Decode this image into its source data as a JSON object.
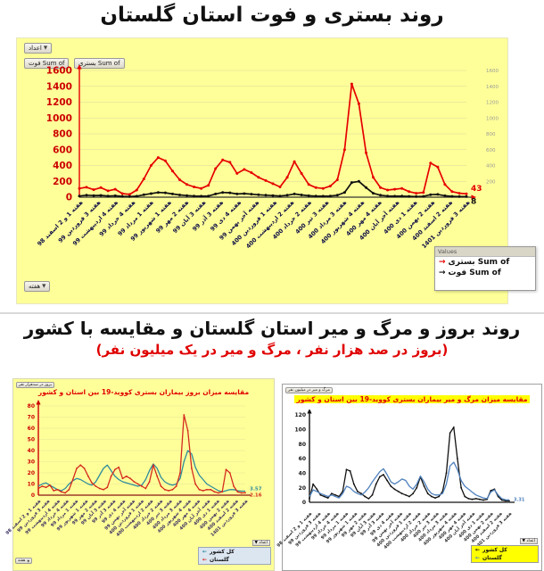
{
  "page": {
    "title_main": "روند بستری و فوت استان گلستان",
    "title_section2": "روند بروز و مرگ و میر استان گلستان و مقایسه با کشور",
    "subtitle_section2": "(بروز در صد هزار نفر ، مرگ و میر در یک میلیون نفر)"
  },
  "main_chart": {
    "numbers_filter_button": "اعداد",
    "field_buttons": [
      "Sum of فوت",
      "Sum of بستری"
    ],
    "week_field_button": "هفته",
    "legend_header": "Values",
    "legend_items": [
      {
        "label": "Sum of بستری",
        "color": "#e60000"
      },
      {
        "label": "Sum of فوت",
        "color": "#111111"
      }
    ]
  },
  "left_chart": {
    "field_button": "بروز در صدهزار نفر",
    "numbers_filter_button": "اعداد",
    "week_field_button": "هفته",
    "legend_items": [
      {
        "label": "کل کشور",
        "color": "#2e8b9c"
      },
      {
        "label": "گلستان",
        "color": "#d42a1e"
      }
    ]
  },
  "right_chart": {
    "field_button": "مرگ و میر در میلیون نفر",
    "numbers_filter_button": "اعداد",
    "legend_items": [
      {
        "label": "کل کشور",
        "color": "#111111"
      },
      {
        "label": "گلستان",
        "color": "#4f81bd"
      }
    ]
  },
  "chart_data": [
    {
      "type": "line",
      "title": "روند بستری و فوت استان گلستان",
      "xlabel": "هفته",
      "ylabel": "",
      "ylim": [
        0,
        1600
      ],
      "yticks": [
        0,
        200,
        400,
        600,
        800,
        1000,
        1200,
        1400,
        1600
      ],
      "grid": true,
      "legend_position": "bottom-right",
      "categories": [
        "هفته 1 و 2 اسفند 98",
        "هفته 3 فروردین 99",
        "هفته 4 اردیبهشت 99",
        "هفته 4 خرداد 99",
        "هفته 1 مرداد 99",
        "هفته 1 شهریور 99",
        "هفته 2 مهر 99",
        "هفته 3 آبان 99",
        "هفته 3 آذر 99",
        "هفته 4 دی 99",
        "هفته آخر بهمن 99",
        "هفته 1 فروردین 400",
        "هفته 2 اردیبهشت 400",
        "هفته 2 خرداد 400",
        "هفته 3 تیر 400",
        "هفته 3 مرداد 400",
        "هفته 4 شهریور 400",
        "هفته 4 مهر 400",
        "هفته آخر آبان 400",
        "هفته 1 دی 400",
        "هفته 2 بهمن 400",
        "هفته 2 اسفند 400",
        "هفته 3 فروردین 1401"
      ],
      "series": [
        {
          "name": "Sum of بستری",
          "color": "#e60000",
          "values": [
            110,
            125,
            95,
            120,
            80,
            100,
            45,
            35,
            90,
            230,
            400,
            500,
            460,
            330,
            220,
            160,
            130,
            110,
            150,
            360,
            470,
            440,
            300,
            350,
            310,
            250,
            210,
            170,
            130,
            250,
            450,
            300,
            160,
            120,
            110,
            140,
            220,
            600,
            1430,
            1180,
            560,
            250,
            120,
            90,
            100,
            110,
            70,
            50,
            60,
            430,
            380,
            160,
            70,
            50,
            43
          ]
        },
        {
          "name": "Sum of فوت",
          "color": "#111111",
          "values": [
            15,
            25,
            20,
            22,
            15,
            18,
            10,
            8,
            12,
            30,
            45,
            60,
            55,
            40,
            28,
            20,
            15,
            12,
            15,
            40,
            60,
            55,
            40,
            45,
            38,
            30,
            25,
            20,
            15,
            25,
            40,
            28,
            18,
            14,
            12,
            15,
            25,
            60,
            185,
            200,
            120,
            50,
            25,
            15,
            12,
            14,
            10,
            8,
            10,
            32,
            35,
            18,
            10,
            8,
            8
          ]
        }
      ],
      "end_labels": [
        {
          "text": "43",
          "color": "#e60000"
        },
        {
          "text": "8",
          "color": "#111111"
        }
      ]
    },
    {
      "type": "line",
      "title": "مقایسه میزان بروز بیماران بستری کووید-19 بین استان و کشور",
      "xlabel": "هفته",
      "ylabel": "بروز در صد هزار نفر",
      "ylim": [
        0,
        80
      ],
      "yticks": [
        0,
        10,
        20,
        30,
        40,
        50,
        60,
        70,
        80
      ],
      "grid": true,
      "legend_position": "bottom-right",
      "categories": [
        "هفته 1 و 2 اسفند 98",
        "هفته 3 فروردین 99",
        "هفته 4 اردیبهشت 99",
        "هفته 4 خرداد 99",
        "هفته 1 مرداد 99",
        "هفته 1 شهریور 99",
        "هفته 2 مهر 99",
        "هفته 3 آبان 99",
        "هفته 3 آذر 99",
        "هفته 4 دی 99",
        "هفته آخر بهمن 99",
        "هفته 1 فروردین 400",
        "هفته 2 اردیبهشت 400",
        "هفته 2 خرداد 400",
        "هفته 3 تیر 400",
        "هفته 3 مرداد 400",
        "هفته 4 شهریور 400",
        "هفته 4 مهر 400",
        "هفته آخر آبان 400",
        "هفته 1 دی 400",
        "هفته 2 بهمن 400",
        "هفته 2 اسفند 400",
        "هفته 3 فروردین 1401"
      ],
      "series": [
        {
          "name": "کل کشور",
          "color": "#2e8b9c",
          "values": [
            8,
            10,
            11,
            9,
            7,
            5,
            4,
            6,
            10,
            13,
            15,
            14,
            12,
            10,
            9,
            12,
            18,
            24,
            27,
            22,
            17,
            14,
            12,
            11,
            10,
            9,
            8,
            9,
            14,
            22,
            28,
            24,
            16,
            12,
            10,
            9,
            10,
            15,
            30,
            40,
            37,
            25,
            18,
            14,
            10,
            8,
            6,
            4,
            3,
            4,
            5,
            5,
            4,
            3.6,
            3.57
          ]
        },
        {
          "name": "گلستان",
          "color": "#d42a1e",
          "values": [
            6,
            8,
            7,
            9,
            4,
            5,
            3,
            2,
            5,
            14,
            24,
            27,
            24,
            17,
            11,
            8,
            6,
            5,
            7,
            17,
            23,
            25,
            15,
            17,
            15,
            12,
            10,
            8,
            6,
            12,
            27,
            17,
            8,
            5,
            4,
            5,
            8,
            20,
            72,
            58,
            24,
            10,
            5,
            4,
            5,
            5,
            3,
            2,
            3,
            23,
            20,
            8,
            3,
            2,
            2.16
          ]
        }
      ],
      "end_labels": [
        {
          "text": "3.57",
          "color": "#2e8b9c"
        },
        {
          "text": "2.16",
          "color": "#d42a1e"
        }
      ]
    },
    {
      "type": "line",
      "title": "مقایسه میزان مرگ و میر بیماران بستری کووید-19 بین استان و کشور",
      "xlabel": "هفته",
      "ylabel": "مرگ و میر در یک میلیون نفر",
      "ylim": [
        0,
        120
      ],
      "yticks": [
        0,
        20,
        40,
        60,
        80,
        100,
        120
      ],
      "grid": false,
      "legend_position": "bottom-right",
      "categories": [
        "هفته 1 و 2 اسفند 98",
        "هفته 3 فروردین 99",
        "هفته 4 اردیبهشت 99",
        "هفته 4 خرداد 99",
        "هفته 1 مرداد 99",
        "هفته 1 شهریور 99",
        "هفته 2 مهر 99",
        "هفته 3 آبان 99",
        "هفته 3 آذر 99",
        "هفته 4 دی 99",
        "هفته آخر بهمن 99",
        "هفته 1 فروردین 400",
        "هفته 2 اردیبهشت 400",
        "هفته 2 خرداد 400",
        "هفته 3 تیر 400",
        "هفته 3 مرداد 400",
        "هفته 4 شهریور 400",
        "هفته 4 مهر 400",
        "هفته آخر آبان 400",
        "هفته 1 دی 400",
        "هفته 2 بهمن 400",
        "هفته 2 اسفند 400",
        "هفته 3 فروردین 1401"
      ],
      "series": [
        {
          "name": "کل کشور",
          "color": "#111111",
          "values": [
            5,
            25,
            18,
            10,
            8,
            6,
            12,
            10,
            8,
            15,
            45,
            43,
            25,
            15,
            12,
            8,
            5,
            10,
            25,
            35,
            38,
            30,
            22,
            18,
            15,
            12,
            10,
            8,
            12,
            20,
            35,
            22,
            12,
            8,
            6,
            8,
            15,
            40,
            95,
            103,
            60,
            20,
            8,
            5,
            4,
            5,
            4,
            3,
            4,
            16,
            18,
            8,
            3,
            2,
            2
          ]
        },
        {
          "name": "گلستان",
          "color": "#4f81bd",
          "values": [
            8,
            17,
            15,
            12,
            10,
            8,
            10,
            8,
            6,
            12,
            22,
            20,
            15,
            12,
            10,
            14,
            20,
            28,
            35,
            42,
            46,
            38,
            28,
            25,
            28,
            32,
            30,
            22,
            18,
            25,
            36,
            28,
            18,
            12,
            10,
            10,
            12,
            25,
            50,
            55,
            45,
            30,
            22,
            18,
            14,
            10,
            8,
            6,
            5,
            14,
            17,
            10,
            5,
            3.5,
            3.31
          ]
        }
      ],
      "end_labels": [
        {
          "text": "3.31",
          "color": "#4f81bd"
        }
      ]
    }
  ]
}
